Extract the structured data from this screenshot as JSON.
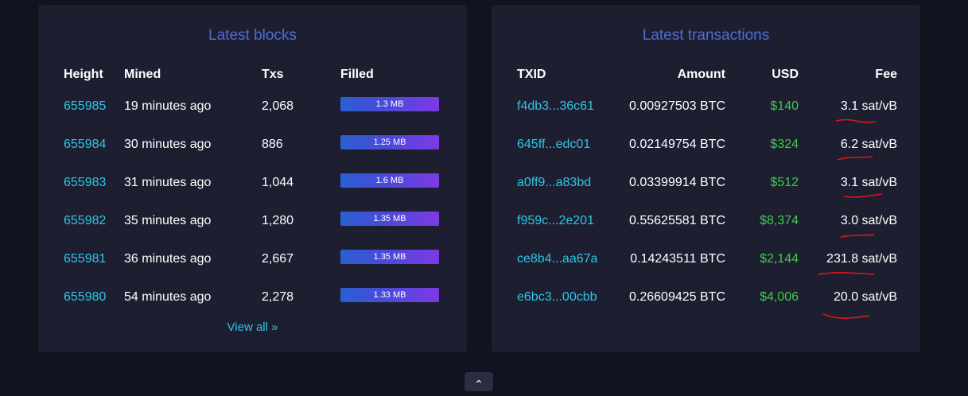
{
  "blocks": {
    "title": "Latest blocks",
    "columns": [
      "Height",
      "Mined",
      "Txs",
      "Filled"
    ],
    "rows": [
      {
        "height": "655985",
        "mined": "19 minutes ago",
        "txs": "2,068",
        "filled": "1.3 MB"
      },
      {
        "height": "655984",
        "mined": "30 minutes ago",
        "txs": "886",
        "filled": "1.25 MB"
      },
      {
        "height": "655983",
        "mined": "31 minutes ago",
        "txs": "1,044",
        "filled": "1.6 MB"
      },
      {
        "height": "655982",
        "mined": "35 minutes ago",
        "txs": "1,280",
        "filled": "1.35 MB"
      },
      {
        "height": "655981",
        "mined": "36 minutes ago",
        "txs": "2,667",
        "filled": "1.35 MB"
      },
      {
        "height": "655980",
        "mined": "54 minutes ago",
        "txs": "2,278",
        "filled": "1.33 MB"
      }
    ],
    "view_all": "View all »"
  },
  "transactions": {
    "title": "Latest transactions",
    "columns": [
      "TXID",
      "Amount",
      "USD",
      "Fee"
    ],
    "rows": [
      {
        "txid": "f4db3...36c61",
        "amount": "0.00927503 BTC",
        "usd": "$140",
        "fee": "3.1 sat/vB"
      },
      {
        "txid": "645ff...edc01",
        "amount": "0.02149754 BTC",
        "usd": "$324",
        "fee": "6.2 sat/vB"
      },
      {
        "txid": "a0ff9...a83bd",
        "amount": "0.03399914 BTC",
        "usd": "$512",
        "fee": "3.1 sat/vB"
      },
      {
        "txid": "f959c...2e201",
        "amount": "0.55625581 BTC",
        "usd": "$8,374",
        "fee": "3.0 sat/vB"
      },
      {
        "txid": "ce8b4...aa67a",
        "amount": "0.14243511 BTC",
        "usd": "$2,144",
        "fee": "231.8 sat/vB"
      },
      {
        "txid": "e6bc3...00cbb",
        "amount": "0.26609425 BTC",
        "usd": "$4,006",
        "fee": "20.0 sat/vB"
      }
    ]
  },
  "scroll_top_icon": "chevron-up-icon",
  "colors": {
    "background": "#11131f",
    "panel": "#1d1f31",
    "title": "#4f6bd6",
    "link": "#2cc6e8",
    "usd": "#3bcc49",
    "annotation": "#e0161a"
  }
}
